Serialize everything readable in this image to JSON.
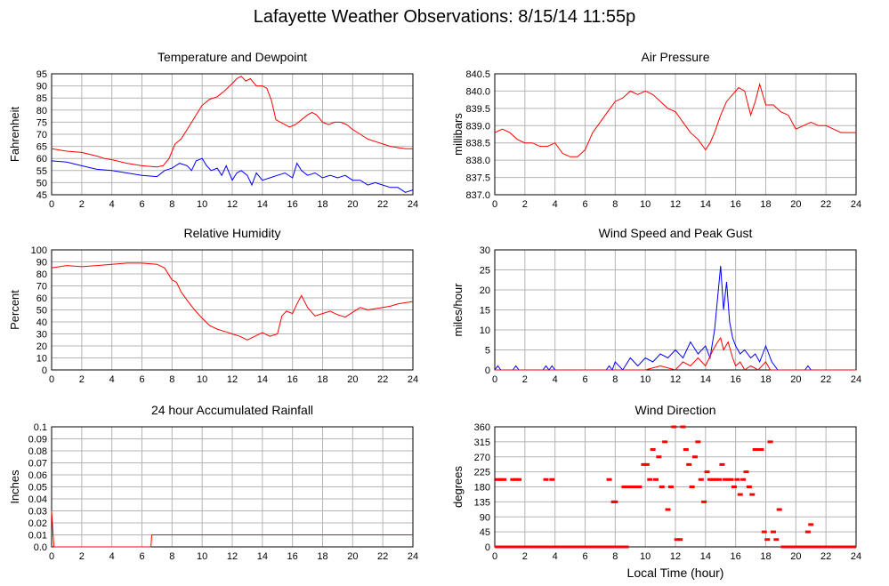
{
  "title": "Lafayette Weather Observations: 8/15/14 11:55p",
  "chart_data": [
    {
      "type": "line",
      "title": "Temperature and Dewpoint",
      "ylabel": "Fahrenheit",
      "xlabel": "",
      "xlim": [
        0,
        24
      ],
      "ylim": [
        45,
        95
      ],
      "x_ticks": [
        "0",
        "2",
        "4",
        "6",
        "8",
        "10",
        "12",
        "14",
        "16",
        "18",
        "20",
        "22",
        "24"
      ],
      "y_ticks": [
        "45",
        "50",
        "55",
        "60",
        "65",
        "70",
        "75",
        "80",
        "85",
        "90",
        "95"
      ],
      "grid": true,
      "series": [
        {
          "color": "#ff0000",
          "x": [
            0,
            1,
            2,
            3,
            3.5,
            4,
            5,
            6,
            7,
            7.4,
            7.8,
            8.2,
            8.6,
            9,
            9.5,
            10,
            10.5,
            11,
            11.5,
            12,
            12.3,
            12.6,
            12.9,
            13.2,
            13.6,
            14,
            14.3,
            14.6,
            14.9,
            15.2,
            15.5,
            15.8,
            16.2,
            16.6,
            17,
            17.3,
            17.6,
            18,
            18.4,
            18.8,
            19.2,
            19.6,
            20,
            20.5,
            21,
            21.5,
            22,
            22.5,
            23,
            23.5,
            24
          ],
          "y": [
            64,
            63,
            62.5,
            61,
            60,
            59.5,
            58,
            57,
            56.5,
            57,
            60,
            66,
            68,
            72,
            77,
            82,
            84.5,
            85.5,
            88,
            91,
            93,
            94,
            92,
            93,
            90,
            90,
            89,
            84,
            76,
            75,
            74,
            73,
            74,
            76,
            78,
            79,
            78,
            75,
            74,
            75,
            75,
            74,
            72,
            70,
            68,
            67,
            66,
            65,
            64.5,
            64,
            64
          ]
        },
        {
          "color": "#0000ff",
          "x": [
            0,
            1,
            2,
            3,
            4,
            5,
            6,
            7,
            7.5,
            8,
            8.5,
            9,
            9.3,
            9.6,
            10,
            10.3,
            10.6,
            11,
            11.3,
            11.6,
            12,
            12.3,
            12.6,
            13,
            13.3,
            13.6,
            14,
            14.5,
            15,
            15.5,
            16,
            16.3,
            16.6,
            17,
            17.5,
            18,
            18.5,
            19,
            19.5,
            20,
            20.5,
            21,
            21.5,
            22,
            22.5,
            23,
            23.5,
            24
          ],
          "y": [
            59,
            58.5,
            57,
            55.5,
            55,
            54,
            53,
            52.5,
            55,
            56,
            58,
            57,
            55,
            59,
            60,
            57,
            55,
            56,
            53,
            57,
            51,
            54,
            55,
            53,
            49,
            54,
            51,
            52,
            53,
            54,
            52,
            58,
            55,
            53,
            54,
            52,
            53,
            52,
            53,
            51,
            51,
            49,
            50,
            49,
            48,
            48,
            46,
            47
          ]
        }
      ]
    },
    {
      "type": "line",
      "title": "Air Pressure",
      "ylabel": "millibars",
      "xlabel": "",
      "xlim": [
        0,
        24
      ],
      "ylim": [
        837.0,
        840.5
      ],
      "x_ticks": [
        "0",
        "2",
        "4",
        "6",
        "8",
        "10",
        "12",
        "14",
        "16",
        "18",
        "20",
        "22",
        "24"
      ],
      "y_ticks": [
        "837.0",
        "837.5",
        "838.0",
        "838.5",
        "839.0",
        "839.5",
        "840.0",
        "840.5"
      ],
      "grid": true,
      "series": [
        {
          "color": "#ff0000",
          "x": [
            0,
            0.5,
            1,
            1.5,
            2,
            2.5,
            3,
            3.5,
            4,
            4.5,
            5,
            5.5,
            6,
            6.5,
            7,
            7.5,
            8,
            8.5,
            9,
            9.5,
            10,
            10.5,
            11,
            11.5,
            12,
            12.5,
            13,
            13.5,
            14,
            14.3,
            14.6,
            15,
            15.4,
            15.8,
            16.2,
            16.6,
            17,
            17.3,
            17.6,
            18,
            18.5,
            19,
            19.5,
            20,
            20.5,
            21,
            21.5,
            22,
            22.5,
            23,
            23.5,
            24
          ],
          "y": [
            838.8,
            838.9,
            838.8,
            838.6,
            838.5,
            838.5,
            838.4,
            838.4,
            838.5,
            838.2,
            838.1,
            838.1,
            838.3,
            838.8,
            839.1,
            839.4,
            839.7,
            839.8,
            840.0,
            839.9,
            840.0,
            839.9,
            839.7,
            839.5,
            839.4,
            839.1,
            838.8,
            838.6,
            838.3,
            838.5,
            838.8,
            839.3,
            839.7,
            839.9,
            840.1,
            840.0,
            839.3,
            839.7,
            840.2,
            839.6,
            839.6,
            839.4,
            839.3,
            838.9,
            839.0,
            839.1,
            839.0,
            839.0,
            838.9,
            838.8,
            838.8,
            838.8
          ]
        }
      ]
    },
    {
      "type": "line",
      "title": "Relative Humidity",
      "ylabel": "Percent",
      "xlabel": "",
      "xlim": [
        0,
        24
      ],
      "ylim": [
        0,
        100
      ],
      "x_ticks": [
        "0",
        "2",
        "4",
        "6",
        "8",
        "10",
        "12",
        "14",
        "16",
        "18",
        "20",
        "22",
        "24"
      ],
      "y_ticks": [
        "0",
        "10",
        "20",
        "30",
        "40",
        "50",
        "60",
        "70",
        "80",
        "90",
        "100"
      ],
      "grid": true,
      "series": [
        {
          "color": "#ff0000",
          "x": [
            0,
            1,
            2,
            3,
            4,
            5,
            6,
            7,
            7.5,
            8,
            8.3,
            8.6,
            9,
            9.5,
            10,
            10.5,
            11,
            11.5,
            12,
            12.5,
            13,
            13.5,
            14,
            14.5,
            15,
            15.3,
            15.6,
            16,
            16.3,
            16.6,
            17,
            17.5,
            18,
            18.5,
            19,
            19.5,
            20,
            20.5,
            21,
            21.5,
            22,
            22.5,
            23,
            23.5,
            24
          ],
          "y": [
            85,
            87,
            86,
            87,
            88,
            89,
            89,
            88,
            85,
            75,
            73,
            65,
            58,
            50,
            43,
            37,
            34,
            32,
            30,
            28,
            25,
            28,
            31,
            28,
            30,
            45,
            49,
            47,
            55,
            62,
            52,
            45,
            47,
            49,
            46,
            44,
            48,
            52,
            50,
            51,
            52,
            53,
            55,
            56,
            57
          ]
        }
      ]
    },
    {
      "type": "line",
      "title": "Wind Speed and Peak Gust",
      "ylabel": "miles/hour",
      "xlabel": "",
      "xlim": [
        0,
        24
      ],
      "ylim": [
        0,
        30
      ],
      "x_ticks": [
        "0",
        "2",
        "4",
        "6",
        "8",
        "10",
        "12",
        "14",
        "16",
        "18",
        "20",
        "22",
        "24"
      ],
      "y_ticks": [
        "0",
        "5",
        "10",
        "15",
        "20",
        "25",
        "30"
      ],
      "grid": true,
      "series": [
        {
          "color": "#0000ff",
          "x": [
            0,
            0.2,
            0.4,
            0.6,
            1.2,
            1.4,
            1.6,
            1.8,
            3.2,
            3.4,
            3.6,
            3.8,
            4.0,
            7.4,
            7.6,
            7.8,
            8.0,
            8.5,
            9.0,
            9.5,
            10,
            10.5,
            11,
            11.5,
            12,
            12.5,
            13,
            13.5,
            14,
            14.3,
            14.6,
            14.8,
            15,
            15.2,
            15.4,
            15.6,
            15.8,
            16,
            16.3,
            16.6,
            17,
            17.3,
            17.6,
            18,
            18.4,
            18.8,
            19,
            20.6,
            20.8,
            21,
            21.2,
            24
          ],
          "y": [
            0,
            1,
            0,
            0,
            0,
            1,
            0,
            0,
            0,
            1,
            0,
            1,
            0,
            0,
            1,
            0,
            2,
            0,
            3,
            1,
            3,
            2,
            4,
            3,
            5,
            3,
            7,
            4,
            6,
            3,
            10,
            18,
            26,
            15,
            22,
            12,
            8,
            6,
            4,
            5,
            3,
            4,
            2,
            6,
            2,
            0,
            0,
            0,
            1,
            0,
            0,
            0
          ]
        },
        {
          "color": "#ff0000",
          "x": [
            0,
            10,
            11,
            12,
            12.5,
            13,
            13.5,
            14,
            14.5,
            14.8,
            15,
            15.2,
            15.5,
            15.8,
            16,
            16.3,
            16.6,
            17,
            17.5,
            18,
            18.3,
            18.6,
            24
          ],
          "y": [
            0,
            0,
            1,
            0,
            2,
            1,
            3,
            1,
            5,
            7,
            8,
            5,
            7,
            3,
            1,
            2,
            0,
            1,
            0,
            2,
            0,
            0,
            0
          ]
        }
      ]
    },
    {
      "type": "line",
      "title": "24 hour Accumulated Rainfall",
      "ylabel": "Inches",
      "xlabel": "",
      "xlim": [
        0,
        24
      ],
      "ylim": [
        0,
        0.1
      ],
      "x_ticks": [
        "0",
        "2",
        "4",
        "6",
        "8",
        "10",
        "12",
        "14",
        "16",
        "18",
        "20",
        "22",
        "24"
      ],
      "y_ticks": [
        "0.0",
        "0.01",
        "0.02",
        "0.03",
        "0.04",
        "0.05",
        "0.06",
        "0.07",
        "0.08",
        "0.09",
        "0.1"
      ],
      "grid": true,
      "series": [
        {
          "color": "#ff0000",
          "x": [
            0,
            0.1,
            0.15,
            0.2,
            6.6,
            6.65,
            24
          ],
          "y": [
            0.03,
            0.01,
            0,
            0,
            0,
            0.01,
            0.01
          ]
        }
      ]
    },
    {
      "type": "scatter",
      "title": "Wind Direction",
      "ylabel": "degrees",
      "xlabel": "Local Time (hour)",
      "xlim": [
        0,
        24
      ],
      "ylim": [
        0,
        360
      ],
      "x_ticks": [
        "0",
        "2",
        "4",
        "6",
        "8",
        "10",
        "12",
        "14",
        "16",
        "18",
        "20",
        "22",
        "24"
      ],
      "y_ticks": [
        "0",
        "45",
        "90",
        "135",
        "180",
        "225",
        "270",
        "315",
        "360"
      ],
      "grid": true,
      "series": [
        {
          "color": "#ff0000",
          "x": [
            0.2,
            0.4,
            0.6,
            1.2,
            1.4,
            1.6,
            3.4,
            3.8,
            7.6,
            7.9,
            8.0,
            8.6,
            8.8,
            9.0,
            9.2,
            9.4,
            9.6,
            9.9,
            10.1,
            10.3,
            10.5,
            10.7,
            10.9,
            11.1,
            11.3,
            11.5,
            11.7,
            11.9,
            12.1,
            12.3,
            12.5,
            12.7,
            12.9,
            13.1,
            13.3,
            13.5,
            13.7,
            13.9,
            14.1,
            14.3,
            14.5,
            14.7,
            14.9,
            15.1,
            15.3,
            15.5,
            15.7,
            15.9,
            16.1,
            16.3,
            16.5,
            16.7,
            16.9,
            17.1,
            17.3,
            17.5,
            17.7,
            17.9,
            18.1,
            18.3,
            18.5,
            18.7,
            18.9,
            20.8,
            21.0
          ],
          "y": [
            202,
            202,
            202,
            202,
            202,
            202,
            202,
            202,
            202,
            135,
            135,
            180,
            180,
            180,
            180,
            180,
            180,
            247,
            247,
            202,
            292,
            202,
            270,
            180,
            315,
            112,
            180,
            360,
            22,
            22,
            360,
            292,
            247,
            180,
            270,
            315,
            202,
            135,
            225,
            202,
            202,
            202,
            202,
            247,
            202,
            202,
            202,
            180,
            202,
            157,
            202,
            225,
            180,
            157,
            292,
            292,
            292,
            45,
            22,
            315,
            45,
            22,
            112,
            45,
            67
          ]
        },
        {
          "color": "#ff0000",
          "type": "baseline-run",
          "x": [
            0,
            8.9,
            19.0,
            24
          ],
          "y": [
            0,
            0,
            0,
            0
          ]
        }
      ]
    }
  ]
}
